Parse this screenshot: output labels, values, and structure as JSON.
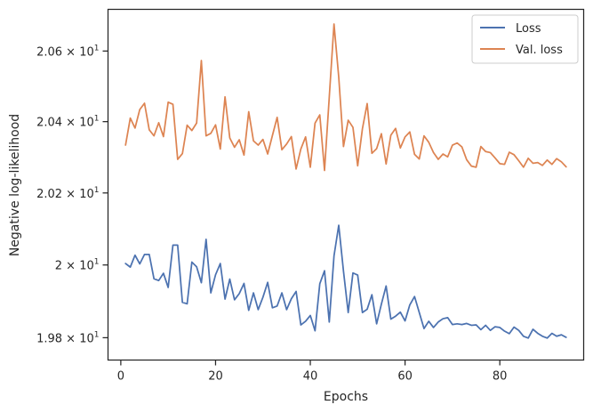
{
  "chart_data": {
    "type": "line",
    "xlabel": "Epochs",
    "ylabel": "Negative log-likelihood",
    "x_ticks": [
      0,
      20,
      40,
      60,
      80
    ],
    "y_ticks": [
      {
        "value": 19.8,
        "mantissa": "1.98",
        "base": "10",
        "exp": "1"
      },
      {
        "value": 20.0,
        "mantissa": "2",
        "base": "10",
        "exp": "1"
      },
      {
        "value": 20.2,
        "mantissa": "2.02",
        "base": "10",
        "exp": "1"
      },
      {
        "value": 20.4,
        "mantissa": "2.04",
        "base": "10",
        "exp": "1"
      },
      {
        "value": 20.6,
        "mantissa": "2.06",
        "base": "10",
        "exp": "1"
      }
    ],
    "xlim": [
      -2.7,
      97.7
    ],
    "ylim": [
      19.739,
      20.719
    ],
    "yscale": "log",
    "grid": false,
    "legend_position": "top-right",
    "x": [
      1,
      2,
      3,
      4,
      5,
      6,
      7,
      8,
      9,
      10,
      11,
      12,
      13,
      14,
      15,
      16,
      17,
      18,
      19,
      20,
      21,
      22,
      23,
      24,
      25,
      26,
      27,
      28,
      29,
      30,
      31,
      32,
      33,
      34,
      35,
      36,
      37,
      38,
      39,
      40,
      41,
      42,
      43,
      44,
      45,
      46,
      47,
      48,
      49,
      50,
      51,
      52,
      53,
      54,
      55,
      56,
      57,
      58,
      59,
      60,
      61,
      62,
      63,
      64,
      65,
      66,
      67,
      68,
      69,
      70,
      71,
      72,
      73,
      74,
      75,
      76,
      77,
      78,
      79,
      80,
      81,
      82,
      83,
      84,
      85,
      86,
      87,
      88,
      89,
      90,
      91,
      92,
      93,
      94
    ],
    "series": [
      {
        "name": "Loss",
        "color": "#4c72b0",
        "values": [
          20.004,
          19.994,
          20.027,
          20.003,
          20.029,
          20.029,
          19.962,
          19.957,
          19.977,
          19.938,
          20.055,
          20.055,
          19.897,
          19.893,
          20.008,
          19.995,
          19.951,
          20.071,
          19.923,
          19.973,
          20.004,
          19.906,
          19.961,
          19.904,
          19.921,
          19.949,
          19.875,
          19.923,
          19.877,
          19.911,
          19.952,
          19.882,
          19.887,
          19.923,
          19.877,
          19.907,
          19.927,
          19.835,
          19.845,
          19.861,
          19.819,
          19.948,
          19.984,
          19.843,
          20.025,
          20.11,
          19.983,
          19.869,
          19.978,
          19.972,
          19.869,
          19.878,
          19.918,
          19.838,
          19.892,
          19.942,
          19.851,
          19.859,
          19.87,
          19.846,
          19.89,
          19.913,
          19.869,
          19.825,
          19.845,
          19.828,
          19.843,
          19.852,
          19.855,
          19.836,
          19.838,
          19.836,
          19.839,
          19.834,
          19.835,
          19.822,
          19.834,
          19.82,
          19.83,
          19.828,
          19.818,
          19.811,
          19.829,
          19.82,
          19.804,
          19.799,
          19.823,
          19.812,
          19.804,
          19.799,
          19.812,
          19.804,
          19.808,
          19.801
        ]
      },
      {
        "name": "Val. loss",
        "color": "#dd8452",
        "values": [
          20.334,
          20.41,
          20.382,
          20.434,
          20.452,
          20.377,
          20.36,
          20.397,
          20.358,
          20.455,
          20.449,
          20.294,
          20.31,
          20.39,
          20.375,
          20.396,
          20.573,
          20.36,
          20.367,
          20.391,
          20.323,
          20.47,
          20.354,
          20.328,
          20.349,
          20.306,
          20.428,
          20.346,
          20.334,
          20.35,
          20.309,
          20.361,
          20.412,
          20.321,
          20.337,
          20.358,
          20.267,
          20.323,
          20.357,
          20.272,
          20.396,
          20.419,
          20.263,
          20.469,
          20.677,
          20.526,
          20.33,
          20.404,
          20.384,
          20.276,
          20.38,
          20.451,
          20.311,
          20.324,
          20.366,
          20.281,
          20.362,
          20.381,
          20.326,
          20.357,
          20.371,
          20.308,
          20.295,
          20.36,
          20.342,
          20.313,
          20.294,
          20.309,
          20.301,
          20.334,
          20.34,
          20.329,
          20.293,
          20.275,
          20.272,
          20.33,
          20.316,
          20.313,
          20.298,
          20.282,
          20.28,
          20.314,
          20.307,
          20.29,
          20.272,
          20.297,
          20.283,
          20.285,
          20.277,
          20.292,
          20.28,
          20.296,
          20.287,
          20.273
        ]
      }
    ]
  }
}
